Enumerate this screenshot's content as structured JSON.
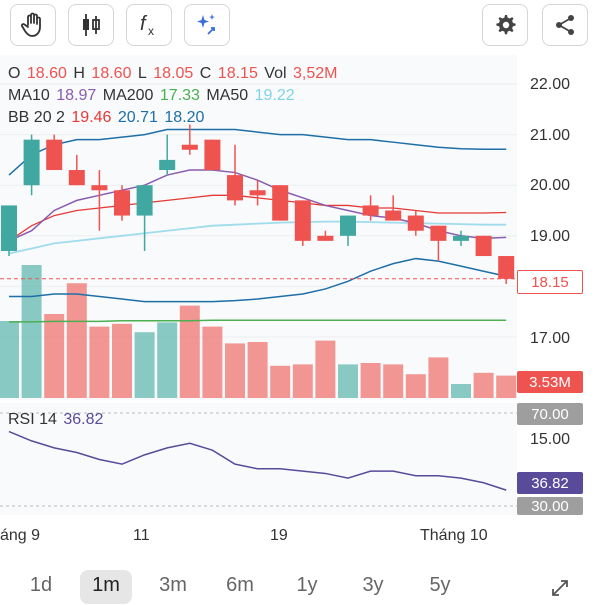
{
  "toolbar": {
    "left": [
      {
        "name": "draw-hand-icon"
      },
      {
        "name": "candlestick-icon"
      },
      {
        "name": "function-icon"
      },
      {
        "name": "ai-sparkle-icon"
      }
    ],
    "right": [
      {
        "name": "settings-gear-icon"
      },
      {
        "name": "share-icon"
      }
    ]
  },
  "legend": {
    "ohlc": [
      {
        "k": "O",
        "v": "18.60"
      },
      {
        "k": "H",
        "v": "18.60"
      },
      {
        "k": "L",
        "v": "18.05"
      },
      {
        "k": "C",
        "v": "18.15"
      },
      {
        "k": "Vol",
        "v": "3,52M"
      }
    ],
    "ma": [
      {
        "k": "MA10",
        "v": "18.97",
        "color": "#8a5bb0"
      },
      {
        "k": "MA200",
        "v": "17.33",
        "color": "#4caf50"
      },
      {
        "k": "MA50",
        "v": "19.22",
        "color": "#7fd3e8"
      }
    ],
    "bb": {
      "k": "BB 20 2",
      "v1": "19.46",
      "v2": "20.71",
      "v3": "18.20",
      "c1": "#e53935",
      "c2": "#1e6fa8",
      "c3": "#1e6fa8"
    },
    "rsi": {
      "k": "RSI 14",
      "v": "36.82",
      "color": "#5a4a9a"
    }
  },
  "colors": {
    "up": "#40a8a0",
    "down": "#ef5350",
    "ohlc_value": "#ef5350"
  },
  "price_axis": [
    "22.00",
    "21.00",
    "20.00",
    "19.00",
    "17.00",
    "15.00"
  ],
  "badges": {
    "price": "18.15",
    "volume": "3.53M",
    "rsi_upper": "70.00",
    "rsi_value": "36.82",
    "rsi_lower": "30.00"
  },
  "x_labels": [
    {
      "text": "áng 9"
    },
    {
      "text": "11"
    },
    {
      "text": "19"
    },
    {
      "text": "Tháng 10"
    }
  ],
  "timeframes": [
    "1d",
    "1m",
    "3m",
    "6m",
    "1y",
    "3y",
    "5y"
  ],
  "active_timeframe": "1m",
  "chart_data": {
    "type": "candlestick",
    "candles": [
      {
        "o": 18.7,
        "h": 19.6,
        "l": 18.6,
        "c": 19.6
      },
      {
        "o": 20.0,
        "h": 21.0,
        "l": 19.8,
        "c": 20.9
      },
      {
        "o": 20.9,
        "h": 21.0,
        "l": 20.3,
        "c": 20.3
      },
      {
        "o": 20.3,
        "h": 20.6,
        "l": 20.0,
        "c": 20.0
      },
      {
        "o": 20.0,
        "h": 20.3,
        "l": 19.1,
        "c": 19.9
      },
      {
        "o": 19.9,
        "h": 20.0,
        "l": 19.3,
        "c": 19.4
      },
      {
        "o": 19.4,
        "h": 20.0,
        "l": 18.7,
        "c": 20.0
      },
      {
        "o": 20.3,
        "h": 21.0,
        "l": 20.2,
        "c": 20.5
      },
      {
        "o": 20.8,
        "h": 21.2,
        "l": 20.6,
        "c": 20.7
      },
      {
        "o": 20.9,
        "h": 20.9,
        "l": 20.3,
        "c": 20.3
      },
      {
        "o": 20.2,
        "h": 20.8,
        "l": 19.6,
        "c": 19.7
      },
      {
        "o": 19.9,
        "h": 20.1,
        "l": 19.6,
        "c": 19.8
      },
      {
        "o": 20.0,
        "h": 20.0,
        "l": 19.3,
        "c": 19.3
      },
      {
        "o": 19.7,
        "h": 19.7,
        "l": 18.8,
        "c": 18.9
      },
      {
        "o": 19.0,
        "h": 19.1,
        "l": 18.9,
        "c": 18.9
      },
      {
        "o": 19.0,
        "h": 19.4,
        "l": 18.8,
        "c": 19.4
      },
      {
        "o": 19.6,
        "h": 19.8,
        "l": 19.3,
        "c": 19.4
      },
      {
        "o": 19.5,
        "h": 19.8,
        "l": 19.3,
        "c": 19.3
      },
      {
        "o": 19.4,
        "h": 19.5,
        "l": 19.0,
        "c": 19.1
      },
      {
        "o": 19.2,
        "h": 19.2,
        "l": 18.5,
        "c": 18.9
      },
      {
        "o": 18.9,
        "h": 19.1,
        "l": 18.8,
        "c": 19.0
      },
      {
        "o": 19.0,
        "h": 19.0,
        "l": 18.6,
        "c": 18.6
      },
      {
        "o": 18.6,
        "h": 18.6,
        "l": 18.05,
        "c": 18.15
      }
    ],
    "volume_relative": [
      0.55,
      0.95,
      0.6,
      0.82,
      0.51,
      0.53,
      0.47,
      0.54,
      0.66,
      0.51,
      0.39,
      0.4,
      0.23,
      0.24,
      0.41,
      0.24,
      0.25,
      0.24,
      0.17,
      0.29,
      0.1,
      0.18,
      0.16
    ],
    "ma10": [
      18.9,
      19.1,
      19.5,
      19.7,
      19.8,
      19.9,
      20.0,
      20.2,
      20.3,
      20.3,
      20.25,
      20.1,
      19.9,
      19.75,
      19.6,
      19.5,
      19.4,
      19.35,
      19.25,
      19.1,
      19.0,
      18.95,
      18.97
    ],
    "ma50": [
      18.65,
      18.75,
      18.85,
      18.9,
      18.95,
      19.0,
      19.05,
      19.1,
      19.15,
      19.2,
      19.22,
      19.24,
      19.26,
      19.27,
      19.28,
      19.28,
      19.27,
      19.26,
      19.25,
      19.24,
      19.23,
      19.22,
      19.22
    ],
    "ma200": [
      17.3,
      17.3,
      17.31,
      17.31,
      17.31,
      17.32,
      17.32,
      17.32,
      17.32,
      17.33,
      17.33,
      17.33,
      17.33,
      17.33,
      17.33,
      17.33,
      17.33,
      17.33,
      17.33,
      17.33,
      17.33,
      17.33,
      17.33
    ],
    "bb_mid": [
      18.9,
      19.2,
      19.4,
      19.5,
      19.55,
      19.6,
      19.65,
      19.7,
      19.75,
      19.8,
      19.8,
      19.75,
      19.7,
      19.65,
      19.6,
      19.6,
      19.55,
      19.55,
      19.5,
      19.45,
      19.45,
      19.45,
      19.46
    ],
    "bb_upper": [
      20.2,
      20.6,
      20.8,
      20.9,
      20.9,
      20.95,
      21.0,
      21.1,
      21.1,
      21.1,
      21.1,
      21.05,
      21.0,
      21.0,
      20.95,
      20.9,
      20.9,
      20.85,
      20.8,
      20.75,
      20.72,
      20.71,
      20.71
    ],
    "bb_lower": [
      17.8,
      17.8,
      17.85,
      17.85,
      17.8,
      17.75,
      17.7,
      17.7,
      17.7,
      17.7,
      17.72,
      17.75,
      17.8,
      17.85,
      17.95,
      18.1,
      18.3,
      18.45,
      18.55,
      18.5,
      18.4,
      18.3,
      18.2
    ],
    "rsi": [
      62,
      58,
      55,
      53,
      50,
      48,
      52,
      55,
      57,
      54,
      48,
      46,
      46,
      45,
      44,
      42,
      45,
      45,
      43,
      43,
      42,
      40,
      36.82
    ],
    "last_price": 18.15
  }
}
